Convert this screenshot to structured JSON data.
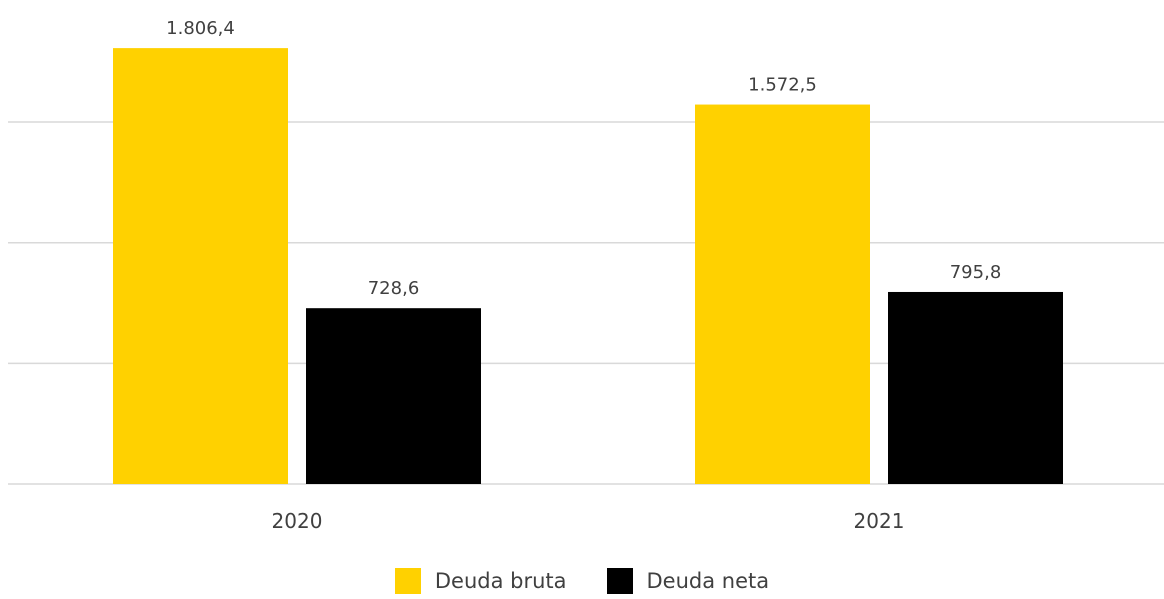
{
  "chart_data": {
    "type": "bar",
    "categories": [
      "2020",
      "2021"
    ],
    "series": [
      {
        "name": "Deuda bruta",
        "color": "#FFD100",
        "values": [
          1806.4,
          1572.5
        ],
        "labels": [
          "1.806,4",
          "1.572,5"
        ]
      },
      {
        "name": "Deuda neta",
        "color": "#000000",
        "values": [
          728.6,
          795.8
        ],
        "labels": [
          "728,6",
          "795,8"
        ]
      }
    ],
    "ylim": [
      0,
      2000
    ],
    "grid": true,
    "gridline_color": "#D9D9D9",
    "legend_position": "bottom"
  }
}
